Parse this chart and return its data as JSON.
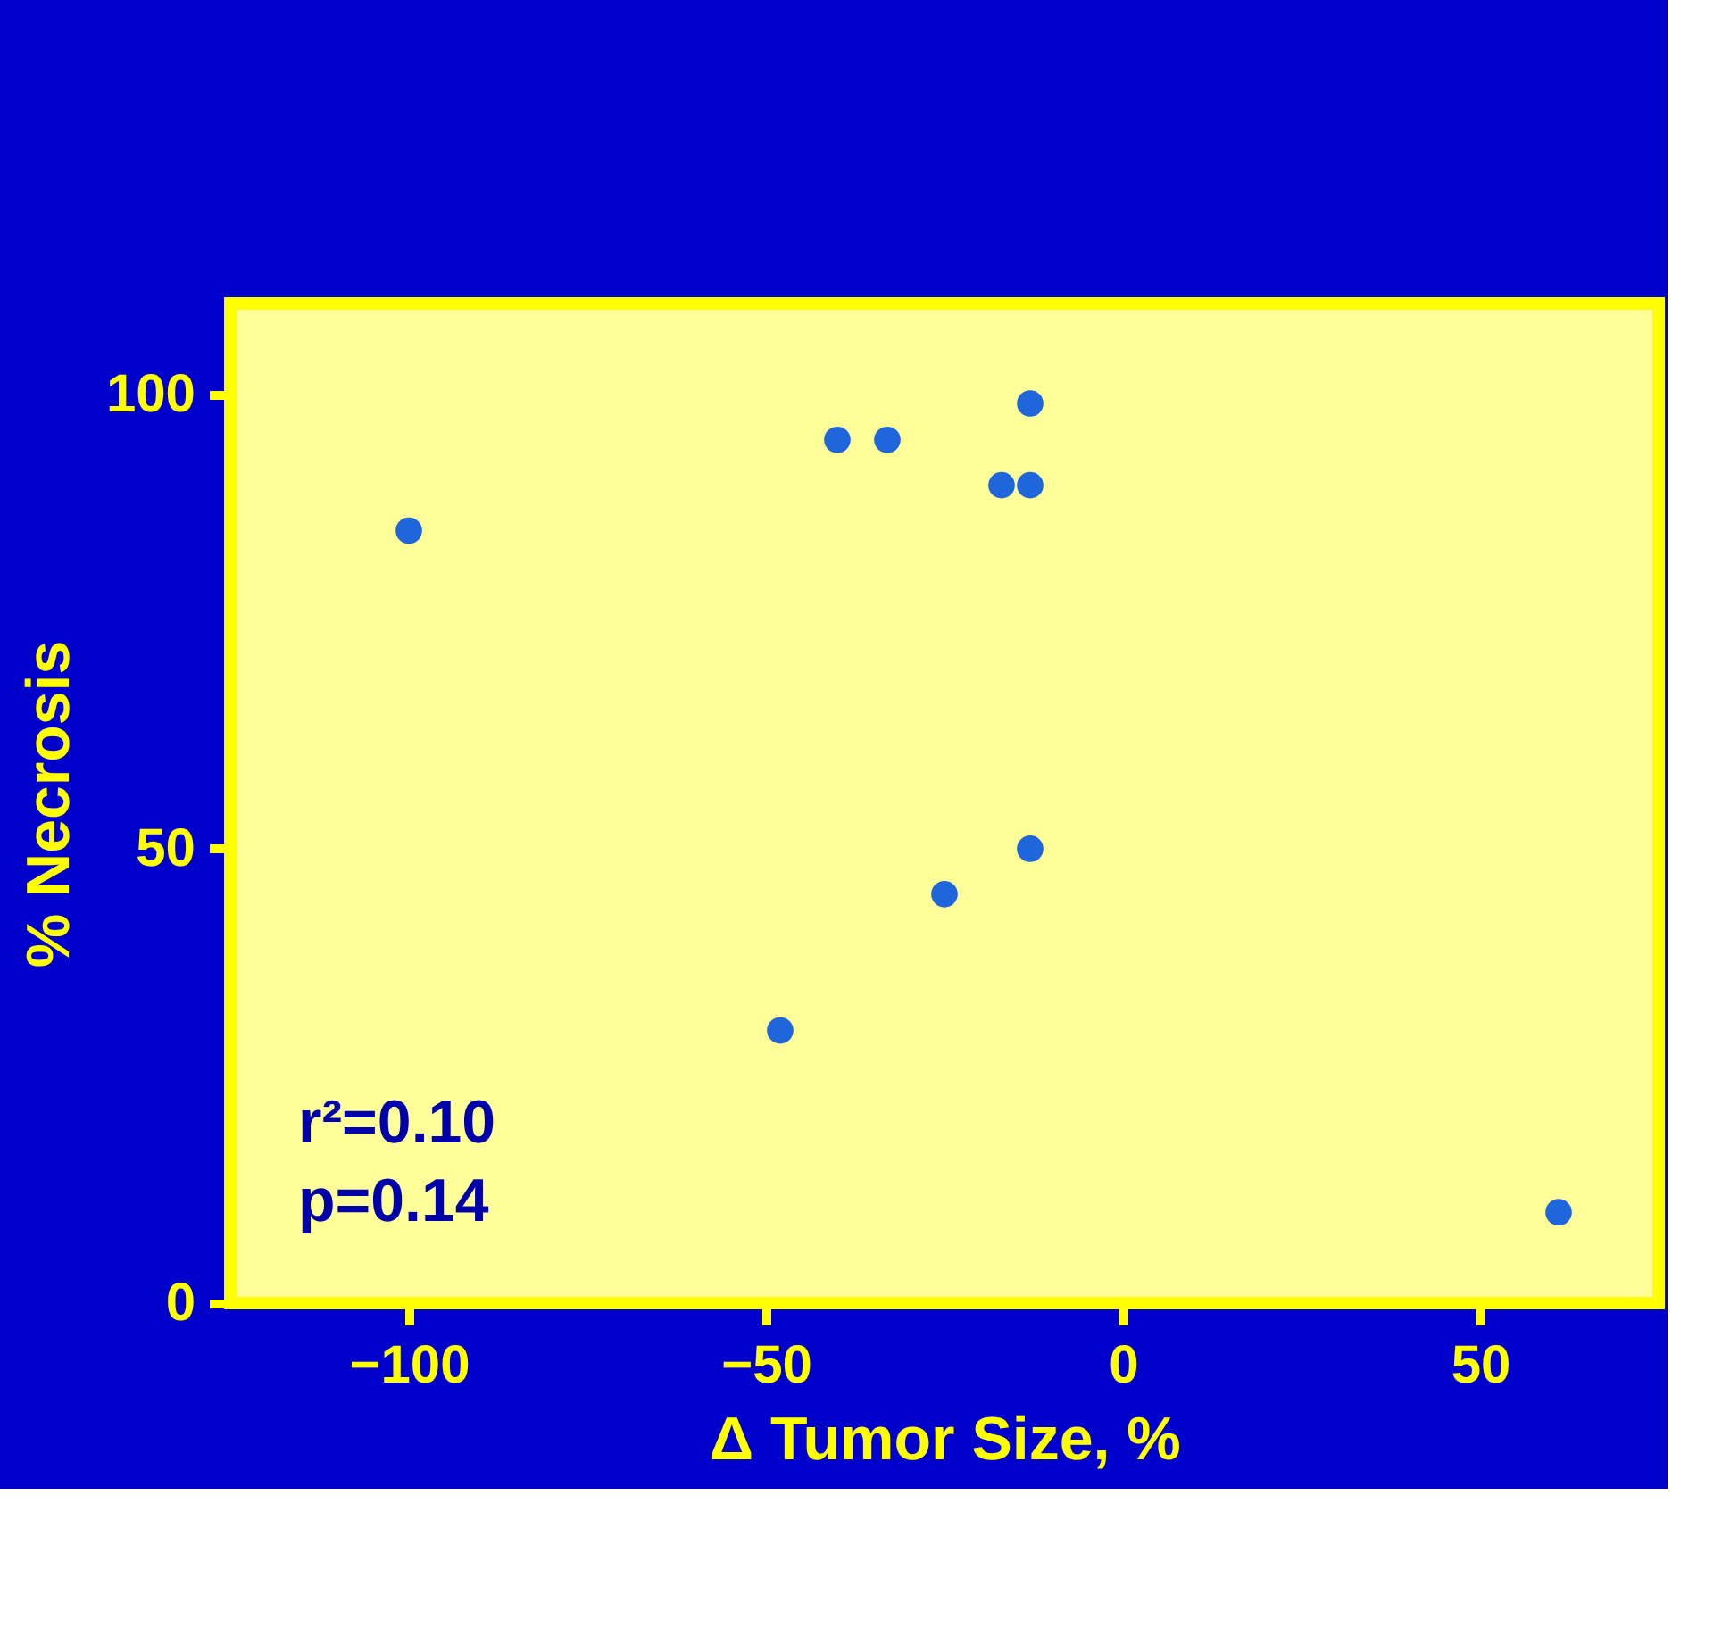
{
  "chart_data": {
    "type": "scatter",
    "xlabel": "Δ Tumor Size, %",
    "ylabel": "% Necrosis",
    "x": [
      -100,
      -40,
      -33,
      -13,
      -17,
      -13,
      -13,
      -25,
      -48,
      61
    ],
    "values": [
      85,
      95,
      95,
      99,
      90,
      90,
      50,
      45,
      30,
      10
    ],
    "color": "#1f66dd",
    "marker": "circle",
    "xlim": [
      -125,
      75
    ],
    "xticks": [
      -100,
      -50,
      0,
      50
    ],
    "ylim": [
      0,
      110
    ],
    "yticks": [
      0,
      50,
      100
    ],
    "grid": false,
    "annotations": [
      "r²=0.10",
      "p=0.14"
    ]
  }
}
